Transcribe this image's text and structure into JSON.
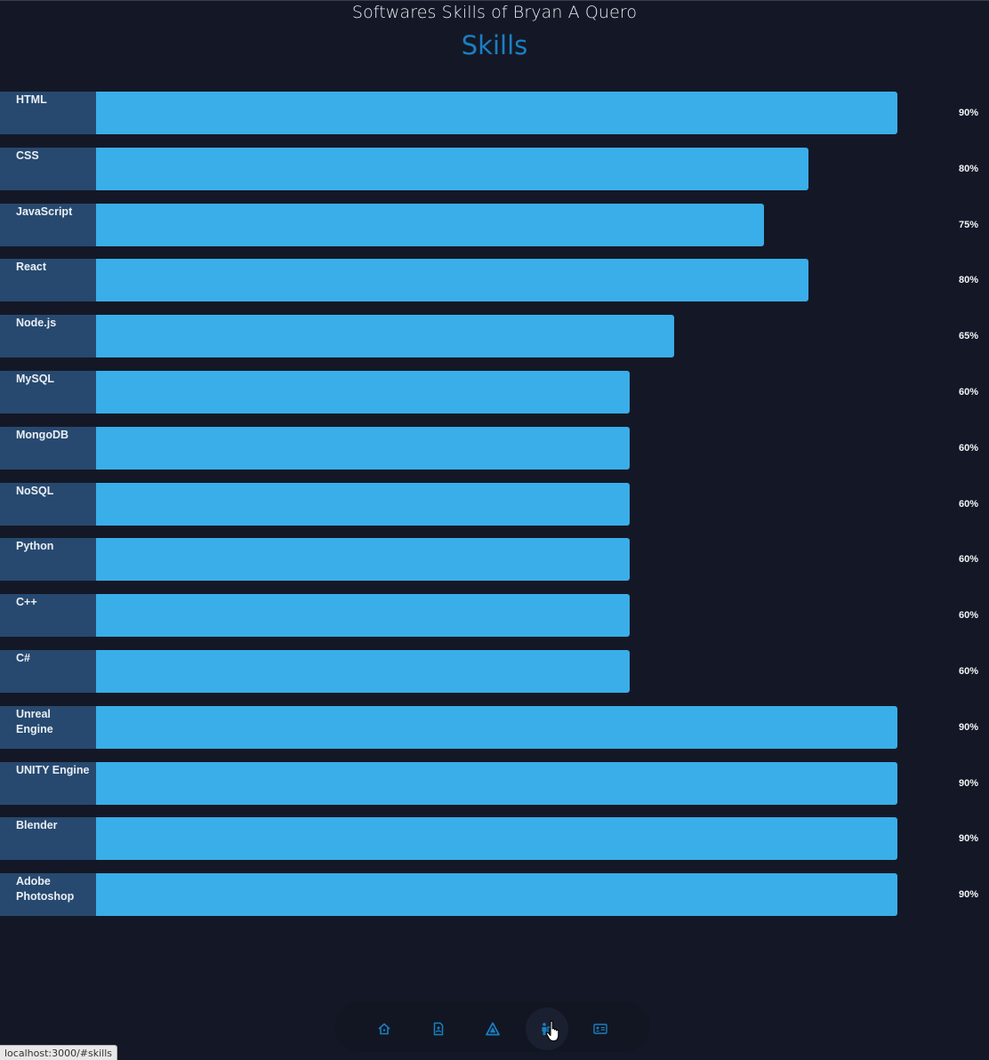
{
  "header": {
    "subtitle": "Softwares Skills of Bryan A Quero",
    "title": "Skills"
  },
  "skills": [
    {
      "name": "HTML",
      "percent_label": "90%",
      "level": 90
    },
    {
      "name": "CSS",
      "percent_label": "80%",
      "level": 80
    },
    {
      "name": "JavaScript",
      "percent_label": "75%",
      "level": 75
    },
    {
      "name": "React",
      "percent_label": "80%",
      "level": 80
    },
    {
      "name": "Node.js",
      "percent_label": "65%",
      "level": 65
    },
    {
      "name": "MySQL",
      "percent_label": "60%",
      "level": 60
    },
    {
      "name": "MongoDB",
      "percent_label": "60%",
      "level": 60
    },
    {
      "name": "NoSQL",
      "percent_label": "60%",
      "level": 60
    },
    {
      "name": "Python",
      "percent_label": "60%",
      "level": 60
    },
    {
      "name": "C++",
      "percent_label": "60%",
      "level": 60
    },
    {
      "name": "C#",
      "percent_label": "60%",
      "level": 60
    },
    {
      "name": "Unreal Engine",
      "percent_label": "90%",
      "level": 90
    },
    {
      "name": "UNITY Engine",
      "percent_label": "90%",
      "level": 90
    },
    {
      "name": "Blender",
      "percent_label": "90%",
      "level": 90
    },
    {
      "name": "Adobe Photoshop",
      "percent_label": "90%",
      "level": 90
    }
  ],
  "dock": {
    "items": [
      {
        "icon": "home-icon",
        "active": false
      },
      {
        "icon": "document-icon",
        "active": false
      },
      {
        "icon": "triangle-logo-icon",
        "active": false
      },
      {
        "icon": "skills-icon",
        "active": true
      },
      {
        "icon": "contact-card-icon",
        "active": false
      }
    ]
  },
  "status_bar": {
    "url": "localhost:3000/#skills"
  },
  "colors": {
    "background": "#141826",
    "accent": "#1a7fc2",
    "bar": "#3aaee9",
    "label_box": "#27496f"
  }
}
